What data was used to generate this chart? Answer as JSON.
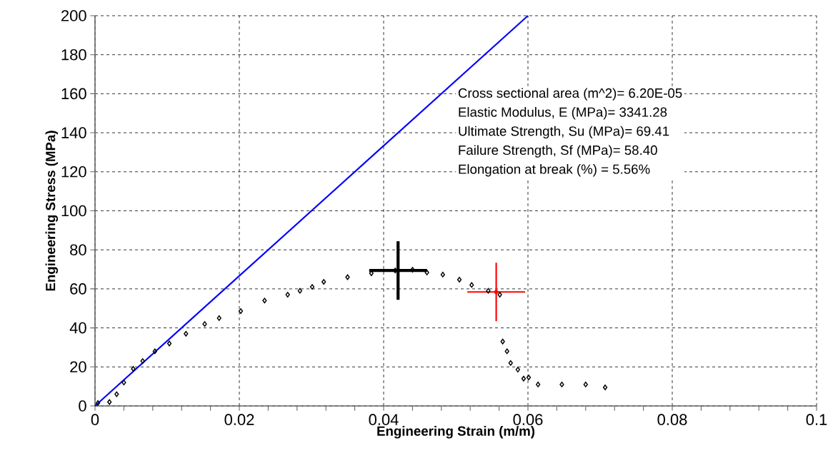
{
  "chart_data": {
    "type": "scatter",
    "xlabel": "Engineering Strain (m/m)",
    "ylabel": "Engineering Stress (MPa)",
    "xlim": [
      0,
      0.1
    ],
    "ylim": [
      0,
      200
    ],
    "xticks": [
      0,
      0.02,
      0.04,
      0.06,
      0.08,
      0.1
    ],
    "yticks": [
      0,
      20,
      40,
      60,
      80,
      100,
      120,
      140,
      160,
      180,
      200
    ],
    "grid": true,
    "annotations": [
      "Cross sectional area (m^2)= 6.20E-05",
      "Elastic Modulus, E (MPa)=  3341.28",
      "Ultimate Strength, Su (MPa)= 69.41",
      "Failure Strength, Sf (MPa)= 58.40",
      "Elongation at break (%) =  5.56%"
    ],
    "series": [
      {
        "type": "line",
        "color": "#0000ff",
        "line_style": "solid",
        "marker": "none",
        "x": [
          0,
          0.06
        ],
        "values": [
          0,
          200
        ]
      },
      {
        "color": "#000000",
        "marker": "diamond",
        "x": [
          0.0004,
          0.002,
          0.003,
          0.004,
          0.0053,
          0.0066,
          0.0083,
          0.0103,
          0.0126,
          0.0152,
          0.0172,
          0.0202,
          0.0235,
          0.0267,
          0.0284,
          0.0301,
          0.0317,
          0.035,
          0.0383,
          0.0416,
          0.044,
          0.046,
          0.0482,
          0.0505,
          0.0522,
          0.0545,
          0.0561,
          0.0565,
          0.0571,
          0.0576,
          0.0586,
          0.0594,
          0.0601,
          0.0614,
          0.0647,
          0.068,
          0.0707
        ],
        "values": [
          1.5,
          2,
          6,
          12,
          19,
          23,
          28,
          32,
          37,
          42,
          45,
          48.6,
          54,
          57,
          59,
          61,
          63.6,
          66,
          68,
          69.4,
          69.8,
          68.4,
          67.3,
          64.7,
          62,
          59,
          57,
          33,
          28,
          22,
          18.6,
          14,
          14.6,
          11,
          11,
          11,
          9.5
        ]
      },
      {
        "color": "#000000",
        "marker": "none",
        "x": [
          0.042
        ],
        "values": [
          69.4
        ],
        "errors": [
          15
        ],
        "xerrors": [
          0.004
        ]
      },
      {
        "color": "#ff0000",
        "marker": "none",
        "x": [
          0.0556
        ],
        "values": [
          58.4
        ],
        "errors": [
          15
        ],
        "xerrors": [
          0.004
        ]
      }
    ]
  }
}
